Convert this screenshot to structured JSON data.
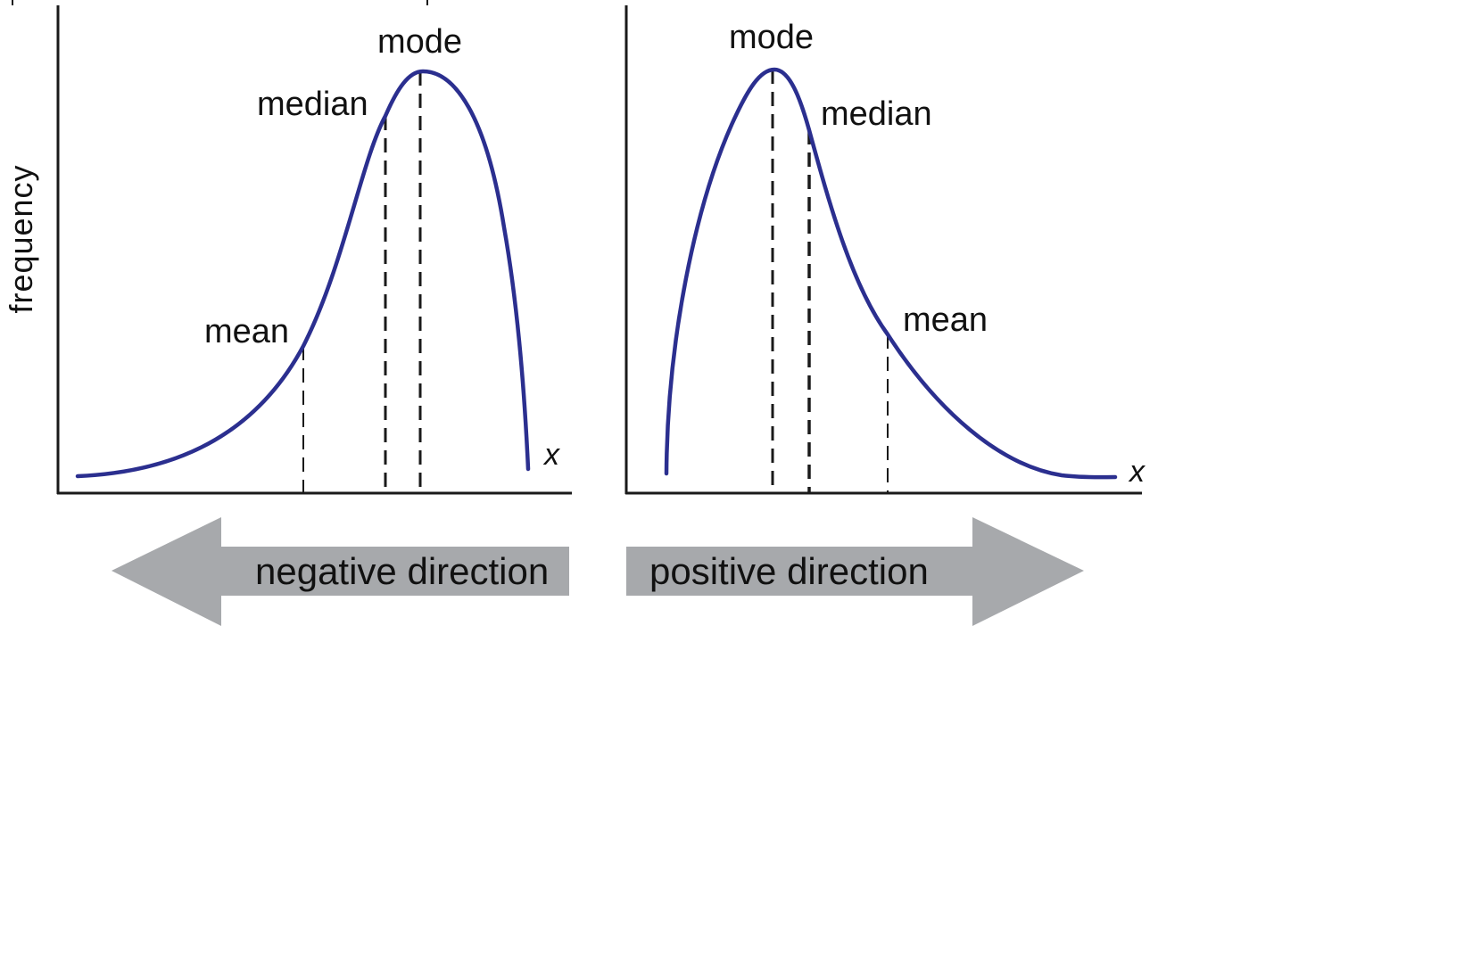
{
  "y_axis_label": "frequency",
  "colors": {
    "curve": "#2b2f8f",
    "arrow": "#a7a9ac",
    "axis": "#1a1a1a",
    "text": "#111111"
  },
  "left_panel": {
    "skew": "negative",
    "x_label": "x",
    "labels": {
      "mode": "mode",
      "median": "median",
      "mean": "mean"
    },
    "arrow_label": "negative direction",
    "arrow_direction": "left"
  },
  "right_panel": {
    "skew": "positive",
    "x_label": "x",
    "labels": {
      "mode": "mode",
      "median": "median",
      "mean": "mean"
    },
    "arrow_label": "positive direction",
    "arrow_direction": "right"
  }
}
